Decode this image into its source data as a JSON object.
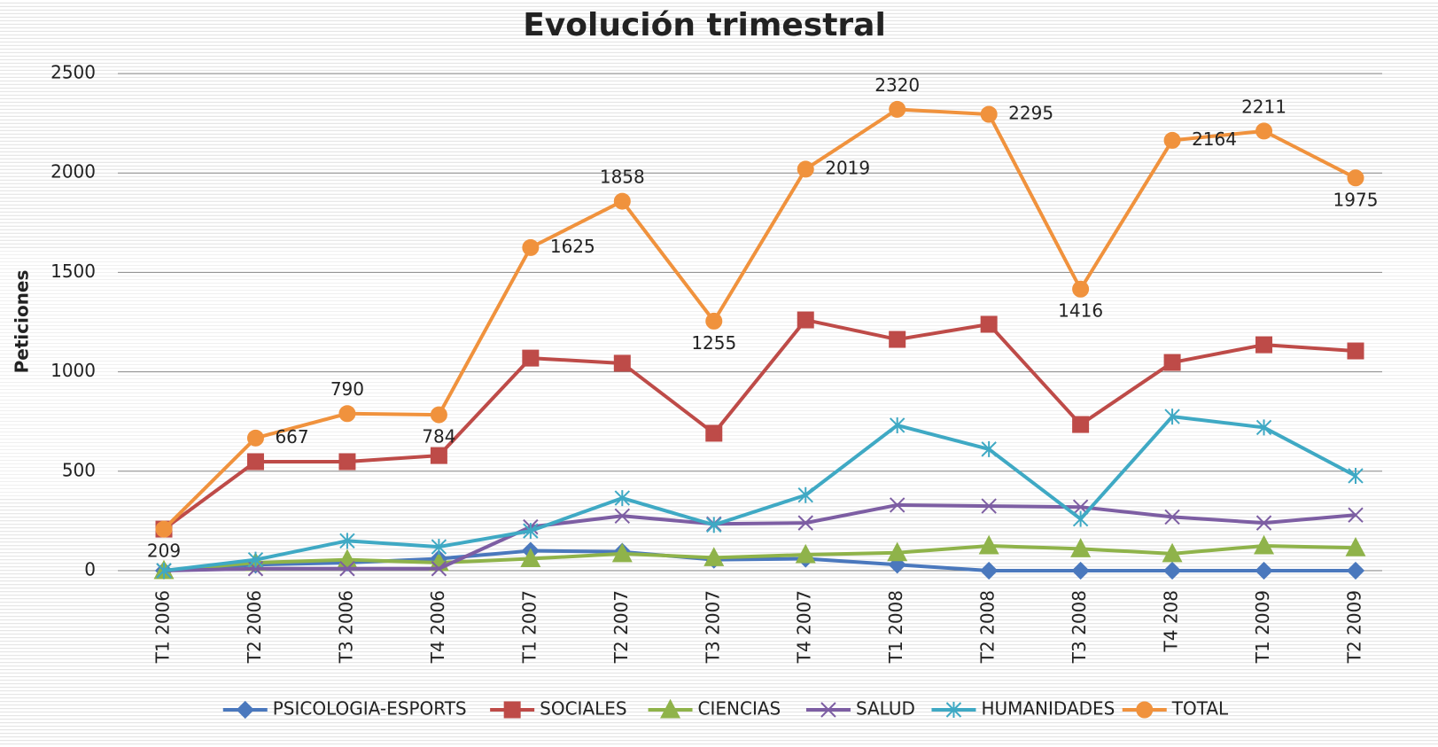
{
  "chart_data": {
    "type": "line",
    "title": "Evolución trimestral",
    "y_label": "Peticiones",
    "categories": [
      "T1 2006",
      "T2 2006",
      "T3 2006",
      "T4 2006",
      "T1 2007",
      "T2 2007",
      "T3 2007",
      "T4 2007",
      "T1 2008",
      "T2 2008",
      "T3 2008",
      "T4 208",
      "T1 2009",
      "T2 2009"
    ],
    "ylim": [
      0,
      2500
    ],
    "yticks": [
      0,
      500,
      1000,
      1500,
      2000,
      2500
    ],
    "grid": true,
    "legend": "bottom",
    "series": [
      {
        "name": "PSICOLOGIA-ESPORTS",
        "color": "#4a78bd",
        "marker": "diamond",
        "values": [
          0,
          30,
          40,
          60,
          100,
          95,
          55,
          60,
          30,
          0,
          0,
          0,
          0,
          0
        ]
      },
      {
        "name": "SOCIALES",
        "color": "#be4b48",
        "marker": "square",
        "values": [
          209,
          548,
          548,
          579,
          1069,
          1043,
          691,
          1261,
          1163,
          1239,
          735,
          1047,
          1136,
          1105
        ]
      },
      {
        "name": "CIENCIAS",
        "color": "#8fb34a",
        "marker": "triangle",
        "values": [
          0,
          40,
          55,
          40,
          60,
          85,
          65,
          80,
          90,
          125,
          110,
          85,
          125,
          115
        ]
      },
      {
        "name": "SALUD",
        "color": "#7d5ea3",
        "marker": "x",
        "values": [
          0,
          10,
          10,
          10,
          220,
          275,
          235,
          240,
          330,
          325,
          320,
          270,
          240,
          280
        ]
      },
      {
        "name": "HUMANIDADES",
        "color": "#3fa9c4",
        "marker": "star",
        "values": [
          0,
          55,
          150,
          120,
          200,
          365,
          230,
          380,
          731,
          611,
          260,
          775,
          720,
          477
        ]
      },
      {
        "name": "TOTAL",
        "color": "#f0923d",
        "marker": "circle",
        "values": [
          209,
          667,
          790,
          784,
          1625,
          1858,
          1255,
          2019,
          2320,
          2295,
          1416,
          2164,
          2211,
          1975
        ],
        "data_labels": true
      }
    ]
  }
}
